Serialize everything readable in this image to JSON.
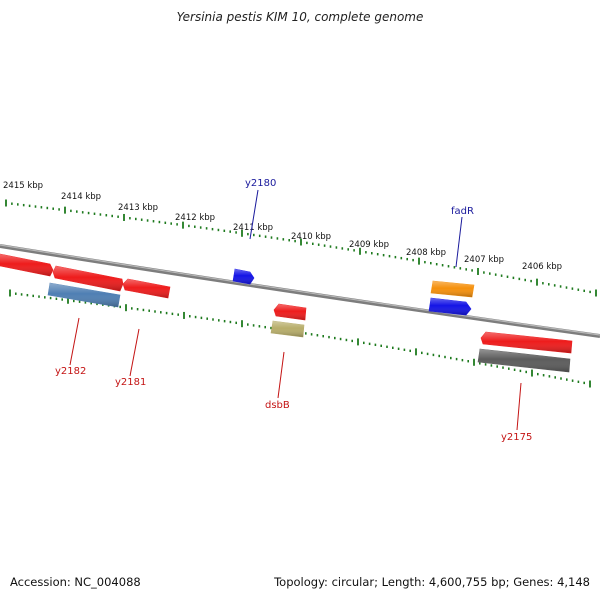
{
  "title": "Yersinia pestis KIM 10, complete genome",
  "footer": {
    "accession": "Accession: NC_004088",
    "summary": "Topology: circular; Length: 4,600,755 bp; Genes: 4,148"
  },
  "colors": {
    "backbone": "#8a8a8a",
    "ticks": "#1e7a1e",
    "red": "#ee1c1c",
    "steelblue": "#4f7fb3",
    "blue": "#1414e6",
    "orange": "#f5900c",
    "khaki": "#b7ad6a",
    "gray": "#5c5c5c",
    "label_blue": "#1a1a9c",
    "label_red": "#c41414"
  },
  "ruler": [
    {
      "label": "2415 kbp"
    },
    {
      "label": "2414 kbp"
    },
    {
      "label": "2413 kbp"
    },
    {
      "label": "2412 kbp"
    },
    {
      "label": "2411 kbp"
    },
    {
      "label": "2410 kbp"
    },
    {
      "label": "2409 kbp"
    },
    {
      "label": "2408 kbp"
    },
    {
      "label": "2407 kbp"
    },
    {
      "label": "2406 kbp"
    }
  ],
  "features": [
    {
      "strand": "forward",
      "color": "red"
    },
    {
      "strand": "forward",
      "color": "red"
    },
    {
      "strand": "forward",
      "color": "red"
    },
    {
      "strand": "forward",
      "color": "blue"
    },
    {
      "strand": "forward",
      "color": "red"
    },
    {
      "strand": "forward",
      "color": "orange"
    },
    {
      "strand": "forward",
      "color": "blue"
    },
    {
      "strand": "forward",
      "color": "red"
    },
    {
      "strand": "reverse",
      "color": "steelblue"
    },
    {
      "strand": "reverse",
      "color": "khaki"
    },
    {
      "strand": "reverse",
      "color": "gray"
    }
  ],
  "gene_labels": [
    {
      "text": "y2180",
      "color": "label_blue"
    },
    {
      "text": "fadR",
      "color": "label_blue"
    },
    {
      "text": "y2182",
      "color": "label_red"
    },
    {
      "text": "y2181",
      "color": "label_red"
    },
    {
      "text": "dsbB",
      "color": "label_red"
    },
    {
      "text": "y2175",
      "color": "label_red"
    }
  ]
}
